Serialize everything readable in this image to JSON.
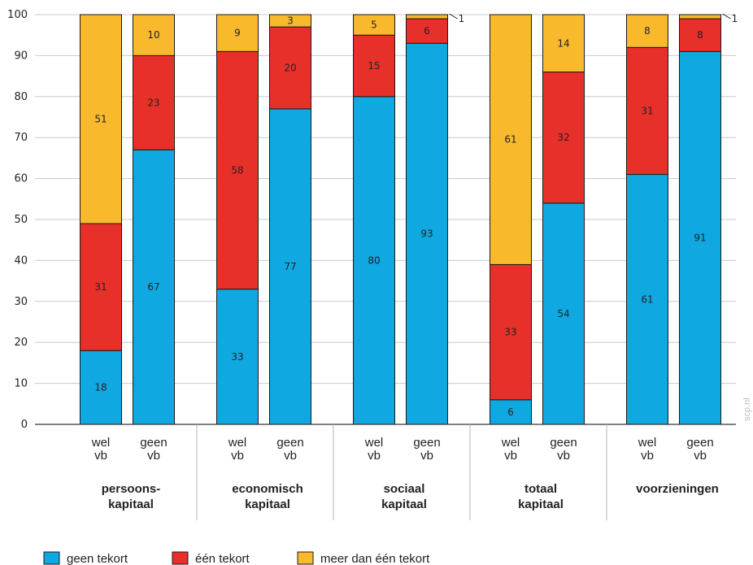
{
  "chart_data": {
    "type": "bar",
    "stacked": true,
    "ylim": [
      0,
      100
    ],
    "yticks": [
      0,
      10,
      20,
      30,
      40,
      50,
      60,
      70,
      80,
      90,
      100
    ],
    "grid": true,
    "groups": [
      {
        "label_lines": [
          "persoons-",
          "kapitaal"
        ],
        "bars": [
          {
            "label_lines": [
              "wel",
              "vb"
            ],
            "values": [
              18,
              31,
              51
            ],
            "labels": [
              "18",
              "31",
              "51"
            ]
          },
          {
            "label_lines": [
              "geen",
              "vb"
            ],
            "values": [
              67,
              23,
              10
            ],
            "labels": [
              "67",
              "23",
              "10"
            ]
          }
        ]
      },
      {
        "label_lines": [
          "economisch",
          "kapitaal"
        ],
        "bars": [
          {
            "label_lines": [
              "wel",
              "vb"
            ],
            "values": [
              33,
              58,
              9
            ],
            "labels": [
              "33",
              "58",
              "9"
            ]
          },
          {
            "label_lines": [
              "geen",
              "vb"
            ],
            "values": [
              77,
              20,
              3
            ],
            "labels": [
              "77",
              "20",
              "3"
            ]
          }
        ]
      },
      {
        "label_lines": [
          "sociaal",
          "kapitaal"
        ],
        "bars": [
          {
            "label_lines": [
              "wel",
              "vb"
            ],
            "values": [
              80,
              15,
              5
            ],
            "labels": [
              "80",
              "15",
              "5"
            ]
          },
          {
            "label_lines": [
              "geen",
              "vb"
            ],
            "values": [
              93,
              6,
              1
            ],
            "labels": [
              "93",
              "6",
              "1"
            ]
          }
        ]
      },
      {
        "label_lines": [
          "totaal",
          "kapitaal"
        ],
        "bars": [
          {
            "label_lines": [
              "wel",
              "vb"
            ],
            "values": [
              6,
              33,
              61
            ],
            "labels": [
              "6",
              "33",
              "61"
            ]
          },
          {
            "label_lines": [
              "geen",
              "vb"
            ],
            "values": [
              54,
              32,
              14
            ],
            "labels": [
              "54",
              "32",
              "14"
            ]
          }
        ]
      },
      {
        "label_lines": [
          "voorzieningen"
        ],
        "bars": [
          {
            "label_lines": [
              "wel",
              "vb"
            ],
            "values": [
              61,
              31,
              8
            ],
            "labels": [
              "61",
              "31",
              "8"
            ]
          },
          {
            "label_lines": [
              "geen",
              "vb"
            ],
            "values": [
              91,
              8,
              1
            ],
            "labels": [
              "91",
              "8",
              "1"
            ]
          }
        ]
      }
    ],
    "series": [
      {
        "name": "geen tekort",
        "color": "#10A8E0"
      },
      {
        "name": "één tekort",
        "color": "#E8302A"
      },
      {
        "name": "meer dan één tekort",
        "color": "#F9B92D"
      }
    ],
    "legend_position": "bottom-left",
    "source_watermark": "scp.nl"
  }
}
